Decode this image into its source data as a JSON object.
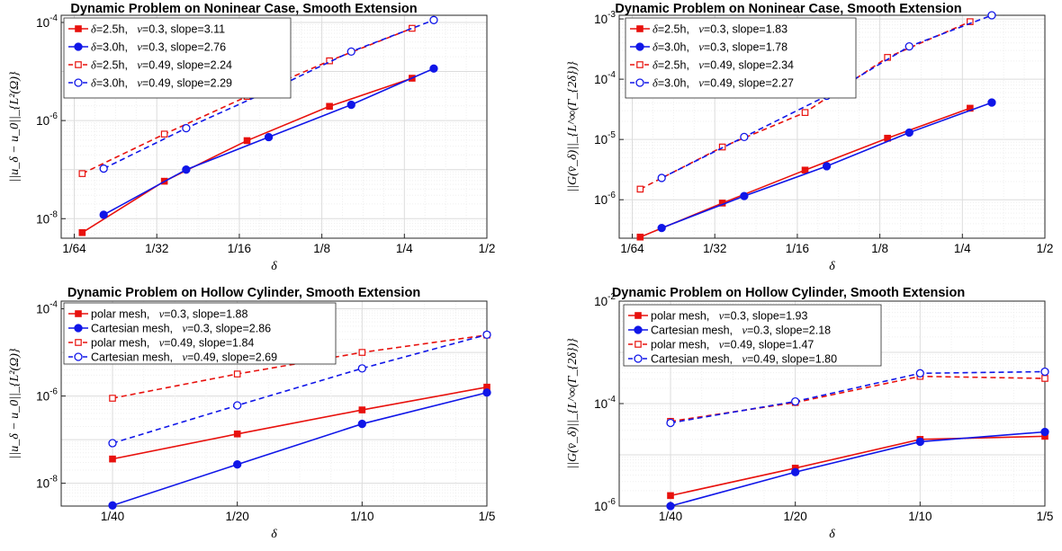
{
  "chart_data": [
    {
      "type": "line",
      "title": "Dynamic Problem on Noninear Case, Smooth Extension",
      "xlabel": "δ",
      "ylabel": "||u_δ − u_0||_{L²(Ω)}",
      "xscale": "log2",
      "yscale": "log10",
      "xlim": [
        0.014,
        0.5
      ],
      "ylim": [
        4e-09,
        0.00014
      ],
      "xticks": [
        0.015625,
        0.03125,
        0.0625,
        0.125,
        0.25,
        0.5
      ],
      "xticklabels": [
        "1/64",
        "1/32",
        "1/16",
        "1/8",
        "1/4",
        "1/2"
      ],
      "yticks": [
        1e-08,
        1e-06,
        0.0001
      ],
      "yticklabel_base": "10",
      "yticklabel_exps": [
        "-8",
        "-6",
        "-4"
      ],
      "grid": true,
      "legend_position": "top-left",
      "series": [
        {
          "name": "δ=2.5h,   ν=0.3, slope=3.11",
          "legend_prefix": "δ",
          "legend_text": "=2.5h,",
          "legend_nu": "ν",
          "legend_rest": "=0.3, slope=3.11",
          "color": "#e8110d",
          "style": "solid",
          "marker": "square-filled",
          "x": [
            0.0167,
            0.0333,
            0.0667,
            0.1333,
            0.2667
          ],
          "y": [
            5.2e-09,
            5.8e-08,
            3.9e-07,
            1.95e-06,
            7.3e-06
          ]
        },
        {
          "name": "δ=3.0h,   ν=0.3, slope=2.76",
          "legend_prefix": "δ",
          "legend_text": "=3.0h,",
          "legend_nu": "ν",
          "legend_rest": "=0.3, slope=2.76",
          "color": "#1016e8",
          "style": "solid",
          "marker": "circle-filled",
          "x": [
            0.02,
            0.04,
            0.08,
            0.16,
            0.32
          ],
          "y": [
            1.2e-08,
            1e-07,
            4.6e-07,
            2.1e-06,
            1.15e-05
          ]
        },
        {
          "name": "δ=2.5h,   ν=0.49, slope=2.24",
          "legend_prefix": "δ",
          "legend_text": "=2.5h,",
          "legend_nu": "ν",
          "legend_rest": "=0.49, slope=2.24",
          "color": "#e8110d",
          "style": "dashed",
          "marker": "square-open",
          "x": [
            0.0167,
            0.0333,
            0.0667,
            0.1333,
            0.2667
          ],
          "y": [
            8.3e-08,
            5.3e-07,
            3.1e-06,
            1.65e-05,
            7.6e-05
          ]
        },
        {
          "name": "δ=3.0h,   ν=0.49, slope=2.29",
          "legend_prefix": "δ",
          "legend_text": "=3.0h,",
          "legend_nu": "ν",
          "legend_rest": "=0.49, slope=2.29",
          "color": "#1016e8",
          "style": "dashed",
          "marker": "circle-open",
          "x": [
            0.02,
            0.04,
            0.08,
            0.16,
            0.32
          ],
          "y": [
            1.05e-07,
            7e-07,
            4e-06,
            2.55e-05,
            0.000112
          ]
        }
      ]
    },
    {
      "type": "line",
      "title": "Dynamic Problem on Noninear Case, Smooth Extension",
      "xlabel": "δ",
      "ylabel": "||G(v̄_δ)||_{L^∞(Γ_{2δ})}",
      "xscale": "log2",
      "yscale": "log10",
      "xlim": [
        0.014,
        0.5
      ],
      "ylim": [
        2.3e-07,
        0.00115
      ],
      "xticks": [
        0.015625,
        0.03125,
        0.0625,
        0.125,
        0.25,
        0.5
      ],
      "xticklabels": [
        "1/64",
        "1/32",
        "1/16",
        "1/8",
        "1/4",
        "1/2"
      ],
      "yticks": [
        1e-06,
        1e-05,
        0.0001,
        0.001
      ],
      "yticklabel_base": "10",
      "yticklabel_exps": [
        "-6",
        "-5",
        "-4",
        "-3"
      ],
      "grid": true,
      "legend_position": "top-left",
      "series": [
        {
          "name": "δ=2.5h,   ν=0.3, slope=1.83",
          "legend_prefix": "δ",
          "legend_text": "=2.5h,",
          "legend_nu": "ν",
          "legend_rest": "=0.3, slope=1.83",
          "color": "#e8110d",
          "style": "solid",
          "marker": "square-filled",
          "x": [
            0.0167,
            0.0333,
            0.0667,
            0.1333,
            0.2667
          ],
          "y": [
            2.4e-07,
            8.8e-07,
            3.1e-06,
            1.05e-05,
            3.3e-05
          ]
        },
        {
          "name": "δ=3.0h,   ν=0.3, slope=1.78",
          "legend_prefix": "δ",
          "legend_text": "=3.0h,",
          "legend_nu": "ν",
          "legend_rest": "=0.3, slope=1.78",
          "color": "#1016e8",
          "style": "solid",
          "marker": "circle-filled",
          "x": [
            0.02,
            0.04,
            0.08,
            0.16,
            0.32
          ],
          "y": [
            3.4e-07,
            1.15e-06,
            3.6e-06,
            1.3e-05,
            4.1e-05
          ]
        },
        {
          "name": "δ=2.5h,   ν=0.49, slope=2.34",
          "legend_prefix": "δ",
          "legend_text": "=2.5h,",
          "legend_nu": "ν",
          "legend_rest": "=0.49, slope=2.34",
          "color": "#e8110d",
          "style": "dashed",
          "marker": "square-open",
          "x": [
            0.0167,
            0.0333,
            0.0667,
            0.1333,
            0.2667
          ],
          "y": [
            1.5e-06,
            7.5e-06,
            2.8e-05,
            0.00023,
            0.0009
          ]
        },
        {
          "name": "δ=3.0h,   ν=0.49, slope=2.27",
          "legend_prefix": "δ",
          "legend_text": "=3.0h,",
          "legend_nu": "ν",
          "legend_rest": "=0.49, slope=2.27",
          "color": "#1016e8",
          "style": "dashed",
          "marker": "circle-open",
          "x": [
            0.02,
            0.04,
            0.08,
            0.16,
            0.32
          ],
          "y": [
            2.3e-06,
            1.1e-05,
            5.3e-05,
            0.00035,
            0.00115
          ]
        }
      ]
    },
    {
      "type": "line",
      "title": "Dynamic Problem on Hollow Cylinder, Smooth Extension",
      "xlabel": "δ",
      "ylabel": "||u_δ − u_0||_{L²(Ω)}",
      "xscale": "log2",
      "yscale": "log10",
      "xlim": [
        0.0188,
        0.2
      ],
      "ylim": [
        3e-09,
        0.00015
      ],
      "xticks": [
        0.025,
        0.05,
        0.1,
        0.2
      ],
      "xticklabels": [
        "1/40",
        "1/20",
        "1/10",
        "1/5"
      ],
      "yticks": [
        1e-08,
        1e-06,
        0.0001
      ],
      "yticklabel_base": "10",
      "yticklabel_exps": [
        "-8",
        "-6",
        "-4"
      ],
      "grid": true,
      "legend_position": "top-left",
      "series": [
        {
          "name": "polar mesh,   ν=0.3, slope=1.88",
          "legend_text": "polar mesh,",
          "legend_nu": "ν",
          "legend_rest": "=0.3, slope=1.88",
          "color": "#e8110d",
          "style": "solid",
          "marker": "square-filled",
          "x": [
            0.025,
            0.05,
            0.1,
            0.2
          ],
          "y": [
            3.6e-08,
            1.35e-07,
            4.8e-07,
            1.6e-06
          ]
        },
        {
          "name": "Cartesian mesh,   ν=0.3, slope=2.86",
          "legend_text": "Cartesian mesh,",
          "legend_nu": "ν",
          "legend_rest": "=0.3, slope=2.86",
          "color": "#1016e8",
          "style": "solid",
          "marker": "circle-filled",
          "x": [
            0.025,
            0.05,
            0.1,
            0.2
          ],
          "y": [
            3.1e-09,
            2.7e-08,
            2.3e-07,
            1.2e-06
          ]
        },
        {
          "name": "polar mesh,   ν=0.49, slope=1.84",
          "legend_text": "polar mesh,",
          "legend_nu": "ν",
          "legend_rest": "=0.49, slope=1.84",
          "color": "#e8110d",
          "style": "dashed",
          "marker": "square-open",
          "x": [
            0.025,
            0.05,
            0.1,
            0.2
          ],
          "y": [
            8.9e-07,
            3.2e-06,
            1e-05,
            2.5e-05
          ]
        },
        {
          "name": "Cartesian mesh,   ν=0.49, slope=2.69",
          "legend_text": "Cartesian mesh,",
          "legend_nu": "ν",
          "legend_rest": "=0.49, slope=2.69",
          "color": "#1016e8",
          "style": "dashed",
          "marker": "circle-open",
          "x": [
            0.025,
            0.05,
            0.1,
            0.2
          ],
          "y": [
            8.3e-08,
            6.1e-07,
            4.3e-06,
            2.55e-05
          ]
        }
      ]
    },
    {
      "type": "line",
      "title": "Dynamic Problem on Hollow Cylinder, Smooth Extension",
      "xlabel": "δ",
      "ylabel": "||G(v̄_δ)||_{L^∞(Γ_{2δ})}",
      "xscale": "log2",
      "yscale": "log10",
      "xlim": [
        0.0188,
        0.2
      ],
      "ylim": [
        1e-06,
        0.01
      ],
      "xticks": [
        0.025,
        0.05,
        0.1,
        0.2
      ],
      "xticklabels": [
        "1/40",
        "1/20",
        "1/10",
        "1/5"
      ],
      "yticks": [
        1e-06,
        0.0001,
        0.01
      ],
      "yticklabel_base": "10",
      "yticklabel_exps": [
        "-6",
        "-4",
        "-2"
      ],
      "grid": true,
      "legend_position": "top-left",
      "series": [
        {
          "name": "polar mesh,   ν=0.3, slope=1.93",
          "legend_text": "polar mesh,",
          "legend_nu": "ν",
          "legend_rest": "=0.3, slope=1.93",
          "color": "#e8110d",
          "style": "solid",
          "marker": "square-filled",
          "x": [
            0.025,
            0.05,
            0.1,
            0.2
          ],
          "y": [
            1.6e-06,
            5.5e-06,
            2e-05,
            2.3e-05
          ]
        },
        {
          "name": "Cartesian mesh,   ν=0.3, slope=2.18",
          "legend_text": "Cartesian mesh,",
          "legend_nu": "ν",
          "legend_rest": "=0.3, slope=2.18",
          "color": "#1016e8",
          "style": "solid",
          "marker": "circle-filled",
          "x": [
            0.025,
            0.05,
            0.1,
            0.2
          ],
          "y": [
            1e-06,
            4.6e-06,
            1.8e-05,
            2.8e-05
          ]
        },
        {
          "name": "polar mesh,   ν=0.49, slope=1.47",
          "legend_text": "polar mesh,",
          "legend_nu": "ν",
          "legend_rest": "=0.49, slope=1.47",
          "color": "#e8110d",
          "style": "dashed",
          "marker": "square-open",
          "x": [
            0.025,
            0.05,
            0.1,
            0.2
          ],
          "y": [
            4.5e-05,
            0.000105,
            0.00034,
            0.00031
          ]
        },
        {
          "name": "Cartesian mesh,   ν=0.49, slope=1.80",
          "legend_text": "Cartesian mesh,",
          "legend_nu": "ν",
          "legend_rest": "=0.49, slope=1.80",
          "color": "#1016e8",
          "style": "dashed",
          "marker": "circle-open",
          "x": [
            0.025,
            0.05,
            0.1,
            0.2
          ],
          "y": [
            4.2e-05,
            0.00011,
            0.00039,
            0.00042
          ]
        }
      ]
    }
  ]
}
